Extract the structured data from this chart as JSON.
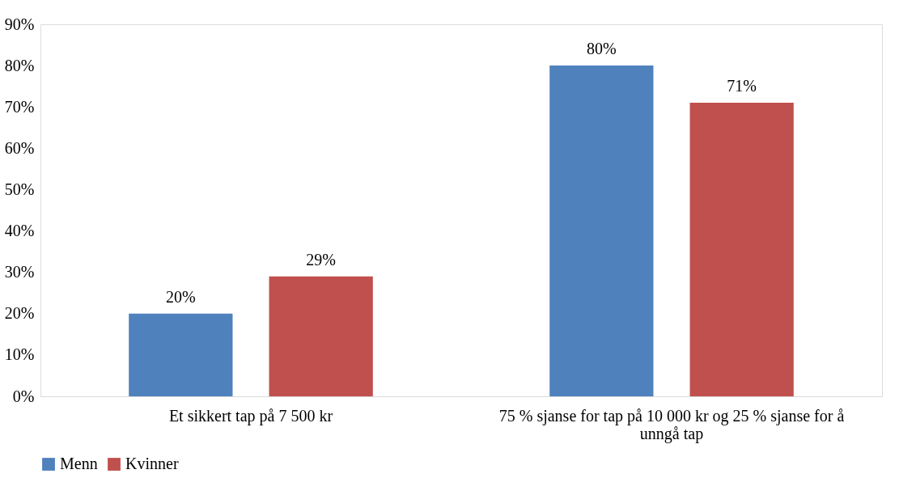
{
  "chart_data": {
    "type": "bar",
    "categories": [
      "Et sikkert tap på 7 500 kr",
      "75 % sjanse for tap på 10 000 kr og 25 % sjanse for å unngå tap"
    ],
    "series": [
      {
        "name": "Menn",
        "color": "#4f81bd",
        "values": [
          20,
          80
        ],
        "value_labels": [
          "20%",
          "80%"
        ]
      },
      {
        "name": "Kvinner",
        "color": "#c0504d",
        "values": [
          29,
          71
        ],
        "value_labels": [
          "29%",
          "71%"
        ]
      }
    ],
    "ylim": [
      0,
      90
    ],
    "yticks": [
      {
        "value": 0,
        "label": "0%"
      },
      {
        "value": 10,
        "label": "10%"
      },
      {
        "value": 20,
        "label": "20%"
      },
      {
        "value": 30,
        "label": "30%"
      },
      {
        "value": 40,
        "label": "40%"
      },
      {
        "value": 50,
        "label": "50%"
      },
      {
        "value": 60,
        "label": "60%"
      },
      {
        "value": 70,
        "label": "70%"
      },
      {
        "value": 80,
        "label": "80%"
      },
      {
        "value": 90,
        "label": "90%"
      }
    ],
    "grid": false,
    "legend": "bottom"
  }
}
